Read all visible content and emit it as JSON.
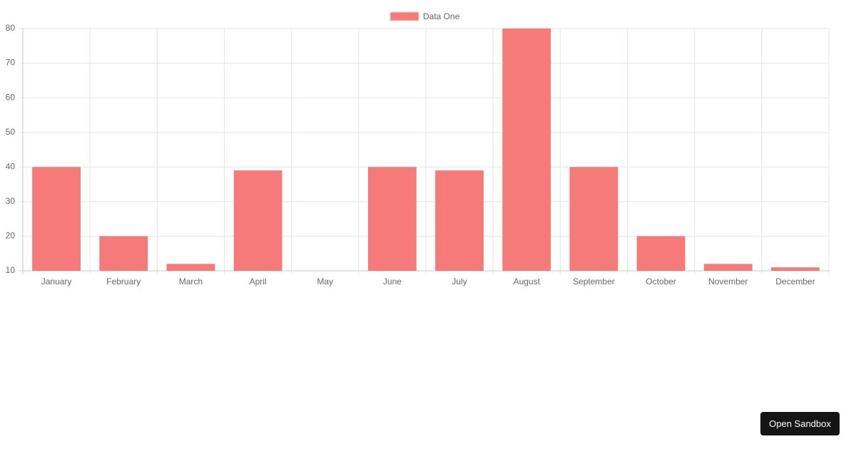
{
  "chart_data": {
    "type": "bar",
    "categories": [
      "January",
      "February",
      "March",
      "April",
      "May",
      "June",
      "July",
      "August",
      "September",
      "October",
      "November",
      "December"
    ],
    "series": [
      {
        "name": "Data One",
        "color": "#f67a7a",
        "values": [
          40,
          20,
          12,
          39,
          10,
          40,
          39,
          80,
          40,
          20,
          12,
          11
        ]
      }
    ],
    "ylim": [
      10,
      80
    ],
    "yticks": [
      10,
      20,
      30,
      40,
      50,
      60,
      70,
      80
    ],
    "grid": true,
    "legend": "top"
  },
  "sandbox_button": "Open Sandbox"
}
